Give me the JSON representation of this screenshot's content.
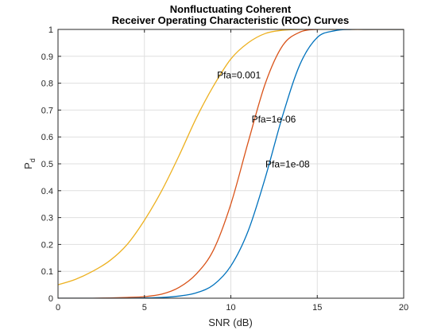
{
  "chart_data": {
    "type": "line",
    "title": [
      "Nonfluctuating Coherent",
      "Receiver Operating Characteristic (ROC) Curves"
    ],
    "xlabel": "SNR (dB)",
    "ylabel": "P",
    "ylabel_subscript": "d",
    "xlim": [
      0,
      20
    ],
    "ylim": [
      0,
      1
    ],
    "xticks": [
      0,
      5,
      10,
      15,
      20
    ],
    "yticks": [
      0,
      0.1,
      0.2,
      0.3,
      0.4,
      0.5,
      0.6,
      0.7,
      0.8,
      0.9,
      1
    ],
    "grid": true,
    "x": [
      0,
      1,
      2,
      3,
      4,
      5,
      6,
      7,
      8,
      9,
      10,
      11,
      12,
      13,
      14,
      15,
      16,
      17,
      18,
      19,
      20
    ],
    "series": [
      {
        "name": "Pfa=0.001",
        "color": "#EDB120",
        "values": [
          0.05,
          0.07,
          0.1,
          0.14,
          0.2,
          0.29,
          0.4,
          0.53,
          0.67,
          0.79,
          0.89,
          0.95,
          0.985,
          0.997,
          1.0,
          1.0,
          1.0,
          1.0,
          1.0,
          1.0,
          1.0
        ]
      },
      {
        "name": "Pfa=1e-06",
        "color": "#D95319",
        "values": [
          0.0,
          0.0,
          0.0,
          0.001,
          0.003,
          0.006,
          0.015,
          0.04,
          0.09,
          0.18,
          0.35,
          0.58,
          0.8,
          0.94,
          0.99,
          1.0,
          1.0,
          1.0,
          1.0,
          1.0,
          1.0
        ]
      },
      {
        "name": "Pfa=1e-08",
        "color": "#0072BD",
        "values": [
          0.0,
          0.0,
          0.0,
          0.0,
          0.0,
          0.001,
          0.003,
          0.008,
          0.02,
          0.05,
          0.12,
          0.25,
          0.45,
          0.68,
          0.87,
          0.97,
          0.995,
          1.0,
          1.0,
          1.0,
          1.0
        ]
      }
    ],
    "annotations": [
      {
        "text": "Pfa=0.001",
        "x": 9.2,
        "y": 0.83
      },
      {
        "text": "Pfa=1e-06",
        "x": 11.2,
        "y": 0.665
      },
      {
        "text": "Pfa=1e-08",
        "x": 12.0,
        "y": 0.498
      }
    ]
  }
}
